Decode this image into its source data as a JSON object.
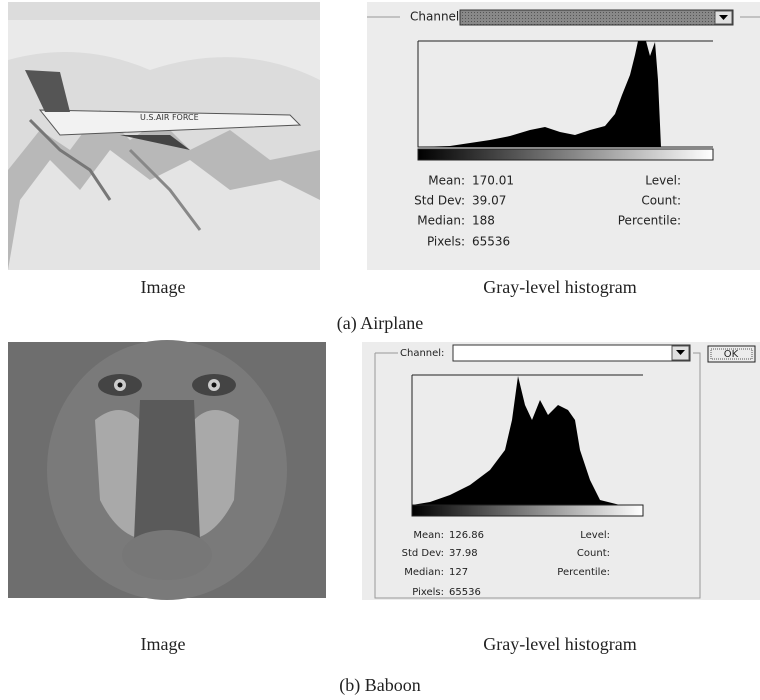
{
  "panels": [
    {
      "image_caption": "Image",
      "histogram": {
        "channel_label": "Channel:",
        "stats": [
          {
            "label": "Mean:",
            "value": 170.01
          },
          {
            "label": "Std Dev:",
            "value": 39.07
          },
          {
            "label": "Median:",
            "value": 188
          },
          {
            "label": "Pixels:",
            "value": 65536
          }
        ],
        "right_labels": [
          "Level:",
          "Count:",
          "Percentile:"
        ],
        "caption": "Gray-level histogram"
      },
      "caption": "(a) Airplane"
    },
    {
      "image_caption": "Image",
      "histogram": {
        "channel_label": "Channel:",
        "stats": [
          {
            "label": "Mean:",
            "value": 126.86
          },
          {
            "label": "Std Dev:",
            "value": 37.98
          },
          {
            "label": "Median:",
            "value": 127
          },
          {
            "label": "Pixels:",
            "value": 65536
          }
        ],
        "right_labels": [
          "Level:",
          "Count:",
          "Percentile:"
        ],
        "caption": "Gray-level histogram",
        "ok_button": "OK"
      },
      "caption": "(b) Baboon"
    }
  ]
}
